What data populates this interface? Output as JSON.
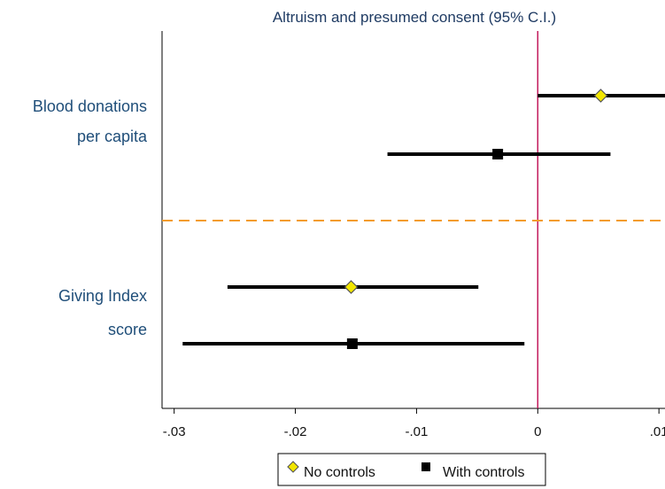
{
  "chart_data": {
    "type": "scatter",
    "title": "Altruism and presumed consent (95% C.I.)",
    "xlabel": "",
    "ylabel": "",
    "xlim": [
      -0.031,
      0.0105
    ],
    "x_ticks": [
      -0.03,
      -0.02,
      -0.01,
      0,
      0.01
    ],
    "x_tick_labels": [
      "-.03",
      "-.02",
      "-.01",
      "0",
      ".01"
    ],
    "groups": [
      {
        "label_lines": [
          "Blood donations",
          "per capita"
        ]
      },
      {
        "label_lines": [
          "Giving Index",
          "score"
        ]
      }
    ],
    "series": [
      {
        "name": "No controls",
        "marker": "diamond",
        "color": "#f2e600",
        "points": [
          {
            "group": 0,
            "estimate": 0.0052,
            "ci_low": 0.0,
            "ci_high": 0.0105
          },
          {
            "group": 1,
            "estimate": -0.0154,
            "ci_low": -0.0256,
            "ci_high": -0.0049
          }
        ]
      },
      {
        "name": "With controls",
        "marker": "square",
        "color": "#000000",
        "points": [
          {
            "group": 0,
            "estimate": -0.0033,
            "ci_low": -0.0124,
            "ci_high": 0.006
          },
          {
            "group": 1,
            "estimate": -0.0153,
            "ci_low": -0.0293,
            "ci_high": -0.0011
          }
        ]
      }
    ],
    "zero_line_color": "#c2185b",
    "group_separator_color": "#f39c2d",
    "grid": false,
    "legend_position": "bottom"
  }
}
